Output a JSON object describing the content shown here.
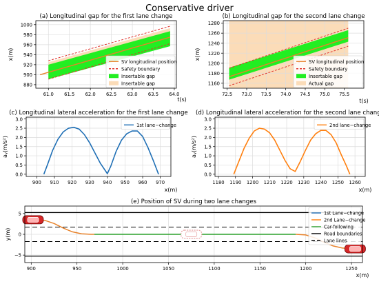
{
  "figure_title": "Conservative driver",
  "colors": {
    "sv": "#e8822a",
    "safety": "#e0302a",
    "insertable": "#22ee22",
    "actual_gap": "#fbdcb8",
    "first_lc": "#1f6fb5",
    "second_lc": "#ff7f0e",
    "car_following": "#2ca02c",
    "road": "#000000",
    "car": "#d62728",
    "car_lane_change": "#e8a0a0"
  },
  "chart_data": [
    {
      "id": "a",
      "type": "area",
      "title": "(a) Longitudinal gap for the first lane change",
      "xlabel": "t(s)",
      "ylabel": "x(m)",
      "xlim": [
        60.7,
        64.05
      ],
      "ylim": [
        873,
        1008
      ],
      "xticks": [
        "61.0",
        "61.5",
        "62.0",
        "62.5",
        "63.0",
        "63.5",
        "64.0"
      ],
      "yticks": [
        "880",
        "900",
        "920",
        "940",
        "960",
        "980",
        "1000"
      ],
      "grid": true,
      "legend_position": "lower-right",
      "legend": [
        "SV longitudinal position",
        "Safety boundary",
        "Insertable gap",
        "Insertable gap"
      ],
      "sv_line": {
        "x": [
          60.8,
          63.9
        ],
        "y": [
          900,
          975
        ]
      },
      "safety_upper": {
        "x": [
          61.0,
          63.9
        ],
        "y": [
          928,
          997
        ]
      },
      "safety_lower": {
        "x": [
          61.0,
          63.9
        ],
        "y": [
          891,
          962
        ]
      },
      "insertable_upper": {
        "x": [
          61.0,
          63.9
        ],
        "y": [
          920,
          987
        ]
      },
      "insertable_lower": {
        "x": [
          61.0,
          63.9
        ],
        "y": [
          891,
          957
        ]
      },
      "peach_upper": {
        "x": [
          61.0,
          63.9
        ],
        "y": [
          925,
          993
        ]
      },
      "peach_lower": {
        "x": [
          61.0,
          63.9
        ],
        "y": [
          891,
          962
        ]
      }
    },
    {
      "id": "b",
      "type": "area",
      "title": "(b) Longitudinal gap for the second lane change",
      "xlabel": "t(s)",
      "ylabel": "x(m)",
      "xlim": [
        72.4,
        76.0
      ],
      "ylim": [
        1150,
        1285
      ],
      "xticks": [
        "72.5",
        "73.0",
        "73.5",
        "74.0",
        "74.5",
        "75.0",
        "75.5"
      ],
      "yticks": [
        "1160",
        "1180",
        "1200",
        "1220",
        "1240",
        "1260",
        "1280"
      ],
      "grid": true,
      "legend_position": "lower-right",
      "legend": [
        "SV longitudinal position",
        "Safety boundary",
        "Insertable gap",
        "Actual gap"
      ],
      "actual_gap": {
        "x": [
          72.55,
          75.6
        ],
        "y": [
          1150,
          1285
        ]
      },
      "sv_line": {
        "x": [
          72.55,
          75.6
        ],
        "y": [
          1173,
          1251
        ]
      },
      "safety_upper": {
        "x": [
          72.55,
          75.6
        ],
        "y": [
          1190,
          1270
        ]
      },
      "safety_lower": {
        "x": [
          72.55,
          75.6
        ],
        "y": [
          1155,
          1234
        ]
      },
      "insertable_upper": {
        "x": [
          72.55,
          75.6
        ],
        "y": [
          1191,
          1266
        ]
      },
      "insertable_lower": {
        "x": [
          72.55,
          75.6
        ],
        "y": [
          1167,
          1243
        ]
      }
    },
    {
      "id": "c",
      "type": "line",
      "title": "(c) Longitudinal lateral acceleration for the first lane change",
      "xlabel": "x(m)",
      "ylabel": "aᵧ(m/s²)",
      "xlim": [
        894,
        976
      ],
      "ylim": [
        -0.12,
        3.1
      ],
      "xticks": [
        "900",
        "910",
        "920",
        "930",
        "940",
        "950",
        "960",
        "970"
      ],
      "yticks": [
        "0.0",
        "0.5",
        "1.0",
        "1.5",
        "2.0",
        "2.5",
        "3.0"
      ],
      "grid": true,
      "legend_position": "top-right",
      "series": [
        {
          "name": "1st lane−change",
          "x": [
            904,
            906,
            909,
            912,
            915,
            918,
            921,
            924,
            927,
            930,
            933,
            936,
            940,
            942,
            945,
            948,
            951,
            954,
            957,
            960,
            963,
            966,
            969
          ],
          "y": [
            0.0,
            0.5,
            1.3,
            1.9,
            2.3,
            2.5,
            2.55,
            2.45,
            2.15,
            1.7,
            1.15,
            0.6,
            0.03,
            0.45,
            1.25,
            1.85,
            2.2,
            2.35,
            2.35,
            2.05,
            1.45,
            0.75,
            0.0
          ]
        }
      ]
    },
    {
      "id": "d",
      "type": "line",
      "title": "(d) Longitudinal lateral acceleration for the second lane change",
      "xlabel": "x(m)",
      "ylabel": "aᵧ(m/s²)",
      "xlim": [
        1178,
        1266
      ],
      "ylim": [
        -0.12,
        3.1
      ],
      "xticks": [
        "1180",
        "1190",
        "1200",
        "1210",
        "1220",
        "1230",
        "1240",
        "1250",
        "1260"
      ],
      "yticks": [
        "0.0",
        "0.5",
        "1.0",
        "1.5",
        "2.0",
        "2.5",
        "3.0"
      ],
      "grid": true,
      "legend_position": "top-right",
      "series": [
        {
          "name": "2nd lane−change",
          "x": [
            1189,
            1192,
            1195,
            1198,
            1201,
            1204,
            1207,
            1210,
            1213,
            1216,
            1219,
            1222,
            1225,
            1228,
            1231,
            1234,
            1237,
            1240,
            1243,
            1246,
            1249,
            1252,
            1255,
            1257
          ],
          "y": [
            0.0,
            0.7,
            1.4,
            1.95,
            2.35,
            2.5,
            2.45,
            2.25,
            1.85,
            1.3,
            0.75,
            0.3,
            0.15,
            0.7,
            1.3,
            1.85,
            2.2,
            2.38,
            2.38,
            2.15,
            1.7,
            1.05,
            0.45,
            0.0
          ]
        }
      ]
    },
    {
      "id": "e",
      "type": "line",
      "title": "(e) Position of SV during two lane changes",
      "xlabel": "x(m)",
      "ylabel": "y(m)",
      "xlim": [
        893,
        1262
      ],
      "ylim": [
        -6.8,
        6.8
      ],
      "xticks": [
        "900",
        "950",
        "1000",
        "1050",
        "1100",
        "1150",
        "1200",
        "1250"
      ],
      "yticks": [
        "−5",
        "0",
        "5"
      ],
      "grid": true,
      "legend_position": "top-right",
      "road_boundaries": [
        5.25,
        -5.25
      ],
      "lane_lines": [
        1.75,
        -1.75
      ],
      "cars": [
        {
          "x": 902,
          "y": 3.5
        },
        {
          "x": 1075,
          "y": 0
        },
        {
          "x": 1254,
          "y": -3.5
        }
      ],
      "series": [
        {
          "name": "1st Lane−change",
          "x": [
            904,
            915,
            925,
            935,
            945,
            955,
            965,
            969
          ],
          "y": [
            3.5,
            3.35,
            2.6,
            1.5,
            0.6,
            0.12,
            0.0,
            0.0
          ]
        },
        {
          "name": "2nd Lane−change",
          "x": [
            1189,
            1200,
            1210,
            1220,
            1230,
            1240,
            1250,
            1257
          ],
          "y": [
            0.0,
            -0.15,
            -0.85,
            -1.9,
            -2.8,
            -3.3,
            -3.48,
            -3.5
          ]
        },
        {
          "name": "Car-following",
          "x": [
            969,
            1189
          ],
          "y": [
            0.0,
            0.0
          ]
        }
      ],
      "legend": [
        "1st Lane−change",
        "2nd Lane−change",
        "Car-following",
        "Road boundaries",
        "Lane lines"
      ]
    }
  ]
}
